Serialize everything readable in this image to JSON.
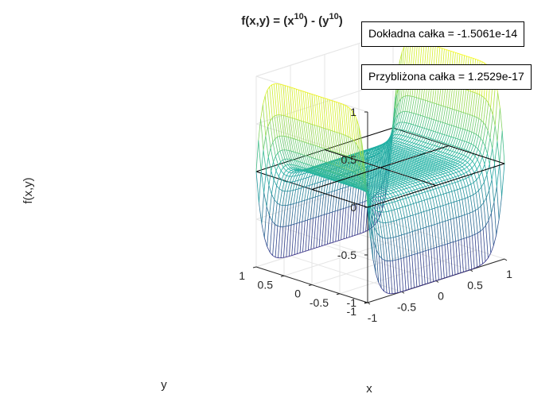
{
  "chart_data": {
    "type": "surface",
    "title": "f(x,y) = (x^10) - (y^10)",
    "title_parts": {
      "a": "f(x,y) = (x",
      "exp1": "10",
      "b": ") - (y",
      "exp2": "10",
      "c": ")"
    },
    "function": "x^10 - y^10",
    "xlabel": "x",
    "ylabel": "y",
    "zlabel": "f(x,y)",
    "xlim": [
      -1,
      1
    ],
    "ylim": [
      -1,
      1
    ],
    "zlim": [
      -1,
      1
    ],
    "x_ticks": [
      "-1",
      "-0.5",
      "0",
      "0.5",
      "1"
    ],
    "y_ticks": [
      "-1",
      "-0.5",
      "0",
      "0.5",
      "1"
    ],
    "z_ticks": [
      "-1",
      "-0.5",
      "0",
      "0.5",
      "1"
    ],
    "x_tick_values": [
      -1,
      -0.5,
      0,
      0.5,
      1
    ],
    "y_tick_values": [
      -1,
      -0.5,
      0,
      0.5,
      1
    ],
    "z_tick_values": [
      -1,
      -0.5,
      0,
      0.5,
      1
    ],
    "grid": true,
    "colormap": "parula",
    "zero_plane": true,
    "annotations": [
      {
        "label": "Dokładna całka = ",
        "value": "-1.5061e-14"
      },
      {
        "label": "Przybliżona całka = ",
        "value": "1.2529e-17"
      }
    ]
  },
  "annotations": {
    "exact": "Dokładna całka =  -1.5061e-14",
    "approx": "Przybliżona całka = 1.2529e-17"
  },
  "colors": {
    "grid": "#e6e6e6",
    "axis": "#262626",
    "plane": "#000000",
    "mesh_low": "#352a87",
    "mesh_mid": "#21b2a4",
    "mesh_high": "#f9fb0e"
  }
}
